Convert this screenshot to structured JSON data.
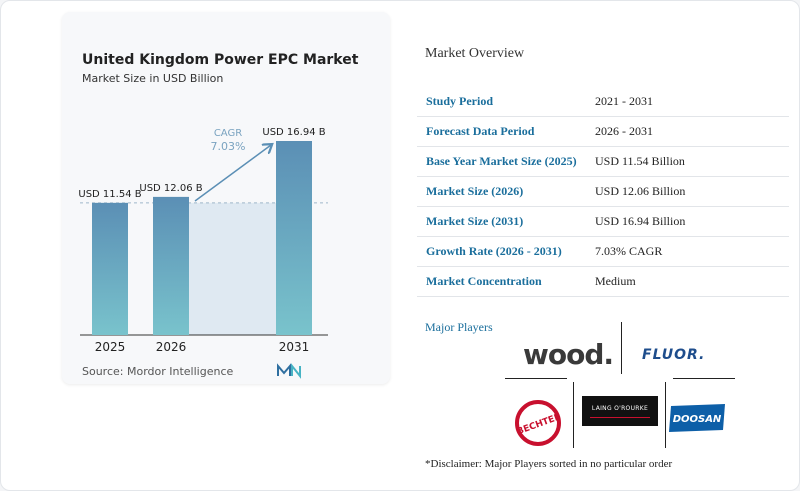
{
  "chart_data": {
    "type": "bar",
    "title": "United Kingdom Power EPC Market",
    "subtitle": "Market Size in USD Billion",
    "categories": [
      "2025",
      "2026",
      "2031"
    ],
    "values": [
      11.54,
      12.06,
      16.94
    ],
    "data_labels": [
      "USD 11.54 B",
      "USD 12.06 B",
      "USD 16.94 B"
    ],
    "cagr_label": "CAGR",
    "cagr_value": "7.03%",
    "ylim": [
      0,
      16.94
    ],
    "bar_color_top": "#5b8fb5",
    "bar_color_bottom": "#79c3cc",
    "reference_value": 11.54
  },
  "source": "Source: Mordor Intelligence",
  "overview": {
    "title": "Market Overview",
    "rows": [
      {
        "key": "Study Period",
        "value": "2021 - 2031"
      },
      {
        "key": "Forecast Data Period",
        "value": "2026 - 2031"
      },
      {
        "key": "Base Year Market Size (2025)",
        "value": "USD 11.54 Billion"
      },
      {
        "key": "Market Size (2026)",
        "value": "USD 12.06 Billion"
      },
      {
        "key": "Market Size (2031)",
        "value": "USD 16.94 Billion"
      },
      {
        "key": "Growth Rate (2026 - 2031)",
        "value": "7.03% CAGR"
      },
      {
        "key": "Market Concentration",
        "value": "Medium"
      }
    ]
  },
  "major_players": {
    "title": "Major Players",
    "logos": [
      "wood.",
      "FLUOR.",
      "BECHTEL",
      "LAING O'ROURKE",
      "DOOSAN"
    ]
  },
  "disclaimer": "*Disclaimer: Major Players sorted in no particular order"
}
